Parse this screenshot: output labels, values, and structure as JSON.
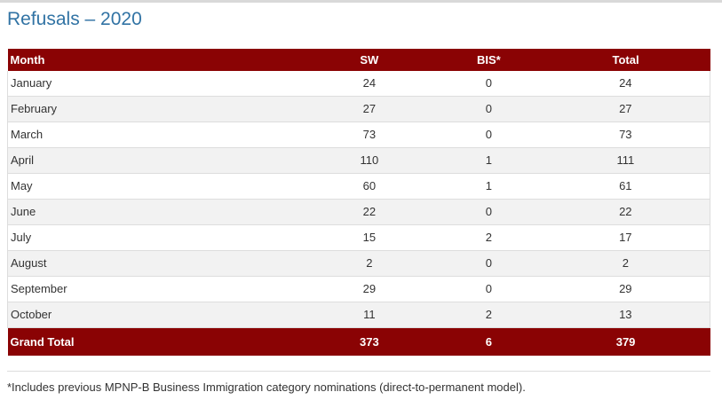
{
  "page": {
    "title": "Refusals – 2020",
    "footnote": "*Includes previous MPNP-B Business Immigration category nominations (direct-to-permanent model)."
  },
  "colors": {
    "header_bg": "#8a0304",
    "header_text": "#ffffff",
    "title_text": "#3173a4",
    "alt_row_bg": "#f2f2f2",
    "row_border": "#dddddd",
    "body_text": "#333333",
    "top_rule": "#d9d9d9"
  },
  "chart_data": {
    "type": "table",
    "title": "Refusals – 2020",
    "columns": [
      "Month",
      "SW",
      "BIS*",
      "Total"
    ],
    "rows": [
      [
        "January",
        24,
        0,
        24
      ],
      [
        "February",
        27,
        0,
        27
      ],
      [
        "March",
        73,
        0,
        73
      ],
      [
        "April",
        110,
        1,
        111
      ],
      [
        "May",
        60,
        1,
        61
      ],
      [
        "June",
        22,
        0,
        22
      ],
      [
        "July",
        15,
        2,
        17
      ],
      [
        "August",
        2,
        0,
        2
      ],
      [
        "September",
        29,
        0,
        29
      ],
      [
        "October",
        11,
        2,
        13
      ]
    ],
    "grand_total": [
      "Grand Total",
      373,
      6,
      379
    ],
    "footnote": "*Includes previous MPNP-B Business Immigration category nominations (direct-to-permanent model)."
  }
}
